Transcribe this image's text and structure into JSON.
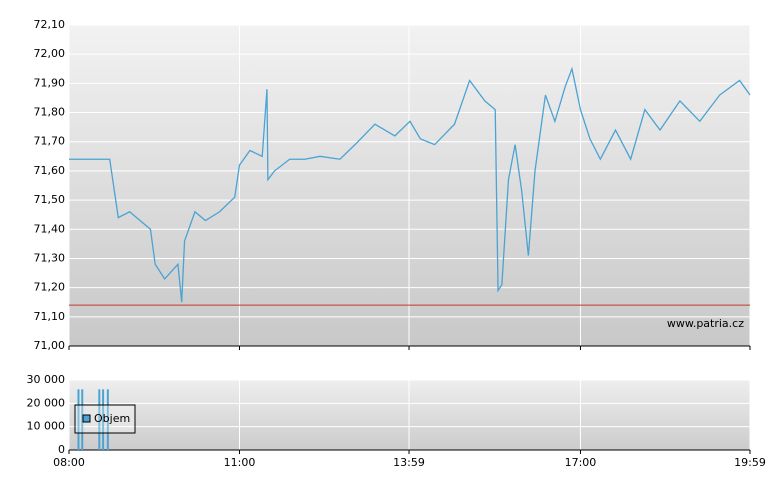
{
  "chart_data": [
    {
      "type": "line",
      "watermark": "www.patria.cz",
      "x": [
        "08:00",
        "08:43",
        "08:52",
        "09:04",
        "09:15",
        "09:26",
        "09:31",
        "09:41",
        "09:55",
        "09:59",
        "10:02",
        "10:13",
        "10:24",
        "10:39",
        "10:55",
        "11:00",
        "11:11",
        "11:24",
        "11:29",
        "11:30",
        "11:37",
        "11:53",
        "12:09",
        "12:25",
        "12:46",
        "13:02",
        "13:23",
        "13:44",
        "14:00",
        "14:11",
        "14:26",
        "14:47",
        "15:03",
        "15:19",
        "15:30",
        "15:33",
        "15:37",
        "15:44",
        "15:51",
        "15:58",
        "16:05",
        "16:12",
        "16:23",
        "16:33",
        "16:44",
        "16:51",
        "17:00",
        "17:10",
        "17:21",
        "17:37",
        "17:53",
        "18:08",
        "18:24",
        "18:45",
        "19:06",
        "19:27",
        "19:48",
        "19:59"
      ],
      "series": [
        {
          "color": "#4aa3d3",
          "values": [
            71.64,
            71.64,
            71.44,
            71.46,
            71.43,
            71.4,
            71.28,
            71.23,
            71.28,
            71.15,
            71.36,
            71.46,
            71.43,
            71.46,
            71.51,
            71.62,
            71.67,
            71.65,
            71.88,
            71.57,
            71.6,
            71.64,
            71.64,
            71.65,
            71.64,
            71.69,
            71.76,
            71.72,
            71.77,
            71.71,
            71.69,
            71.76,
            71.91,
            71.84,
            71.81,
            71.19,
            71.21,
            71.57,
            71.69,
            71.53,
            71.31,
            71.6,
            71.86,
            71.77,
            71.89,
            71.95,
            71.81,
            71.71,
            71.64,
            71.74,
            71.64,
            71.81,
            71.74,
            71.84,
            71.77,
            71.86,
            71.91,
            71.86
          ]
        }
      ],
      "reference_line": {
        "value": 71.14,
        "color": "#c0392b"
      },
      "xlim": [
        "08:00",
        "19:59"
      ],
      "xticks": [
        "08:00",
        "11:00",
        "13:59",
        "17:00",
        "19:59"
      ],
      "ylim": [
        71.0,
        72.1
      ],
      "yticks": [
        {
          "value": 71.0,
          "label": "71,00"
        },
        {
          "value": 71.1,
          "label": "71,10"
        },
        {
          "value": 71.2,
          "label": "71,20"
        },
        {
          "value": 71.3,
          "label": "71,30"
        },
        {
          "value": 71.4,
          "label": "71,40"
        },
        {
          "value": 71.5,
          "label": "71,50"
        },
        {
          "value": 71.6,
          "label": "71,60"
        },
        {
          "value": 71.7,
          "label": "71,70"
        },
        {
          "value": 71.8,
          "label": "71,80"
        },
        {
          "value": 71.9,
          "label": "71,90"
        },
        {
          "value": 72.0,
          "label": "72,00"
        },
        {
          "value": 72.1,
          "label": "72,10"
        }
      ],
      "grid": true
    },
    {
      "type": "bar",
      "x": [
        "08:10",
        "08:14",
        "08:32",
        "08:36",
        "08:41"
      ],
      "series": [
        {
          "name": "Objem",
          "color": "#4aa3d3",
          "values": [
            26000,
            26000,
            26000,
            26000,
            26000
          ]
        }
      ],
      "xlim": [
        "08:00",
        "19:59"
      ],
      "xticks": [
        "08:00",
        "11:00",
        "13:59",
        "17:00",
        "19:59"
      ],
      "ylim": [
        0,
        30000
      ],
      "yticks": [
        0,
        {
          "value": 10000,
          "label": "10 000"
        },
        {
          "value": 20000,
          "label": "20 000"
        },
        {
          "value": 30000,
          "label": "30 000"
        }
      ],
      "grid": true,
      "legend": "upper-left"
    }
  ]
}
